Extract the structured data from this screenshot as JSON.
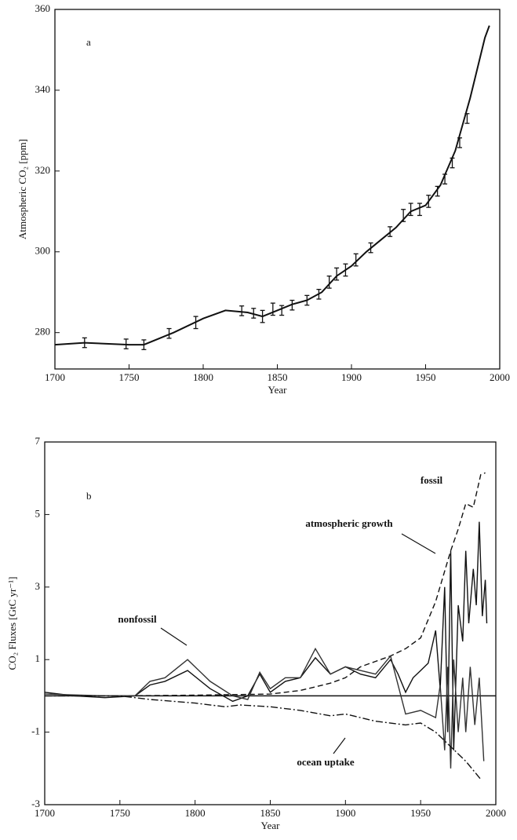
{
  "chart_data": [
    {
      "type": "line",
      "annotation": "a",
      "xlabel": "Year",
      "ylabel": "Atmospheric CO₂ [ppm]",
      "xlim": [
        1700,
        2000
      ],
      "xticks": [
        1700,
        1750,
        1800,
        1850,
        1900,
        1950,
        2000
      ],
      "ylim": [
        271,
        360
      ],
      "yticks": [
        280,
        300,
        320,
        340,
        360
      ],
      "series": [
        {
          "color": "#111111",
          "dash": "solid",
          "width": 2,
          "x": [
            1700,
            1720,
            1750,
            1760,
            1780,
            1800,
            1815,
            1830,
            1840,
            1850,
            1860,
            1870,
            1880,
            1890,
            1900,
            1910,
            1920,
            1930,
            1940,
            1950,
            1960,
            1970,
            1980,
            1990,
            1993
          ],
          "values": [
            277,
            277.5,
            277,
            277,
            280,
            283.5,
            285.5,
            285,
            284,
            285.5,
            287,
            288,
            290,
            294,
            296.5,
            300,
            303,
            306,
            310,
            311.5,
            316.5,
            325,
            338,
            353,
            356
          ]
        },
        {
          "color": "#111111",
          "style": "errorbar",
          "x": [
            1720,
            1748,
            1760,
            1777,
            1795,
            1826,
            1834,
            1840,
            1847,
            1853,
            1860,
            1870,
            1878,
            1885,
            1890,
            1896,
            1903,
            1913,
            1926,
            1935,
            1940,
            1946,
            1952,
            1958,
            1963,
            1968,
            1973,
            1978
          ],
          "values": [
            277.5,
            277.2,
            277,
            279.8,
            282.5,
            285.4,
            284.8,
            284,
            285.8,
            285.5,
            286.8,
            288,
            289.5,
            292.5,
            294.5,
            295.5,
            298,
            301,
            305,
            309,
            310.5,
            310.5,
            312.5,
            315,
            318,
            322,
            327,
            333
          ],
          "errors": [
            1.2,
            1.2,
            1.2,
            1.2,
            1.5,
            1.2,
            1.2,
            1.5,
            1.5,
            1.2,
            1.2,
            1.2,
            1.2,
            1.5,
            1.5,
            1.5,
            1.5,
            1.2,
            1.2,
            1.5,
            1.5,
            1.5,
            1.5,
            1.2,
            1.2,
            1.2,
            1.2,
            1.2
          ]
        }
      ]
    },
    {
      "type": "line",
      "annotation": "b",
      "xlabel": "Year",
      "ylabel": "CO₂ Fluxes [GtC yr⁻¹]",
      "xlim": [
        1700,
        2000
      ],
      "xticks": [
        1700,
        1750,
        1800,
        1850,
        1900,
        1950,
        2000
      ],
      "ylim": [
        -3,
        7
      ],
      "yticks": [
        -3,
        -1,
        1,
        3,
        5,
        7
      ],
      "series": [
        {
          "name": "fossil",
          "color": "#111111",
          "dash": "dashed",
          "x": [
            1750,
            1800,
            1850,
            1860,
            1870,
            1880,
            1890,
            1900,
            1910,
            1920,
            1930,
            1940,
            1950,
            1960,
            1970,
            1975,
            1980,
            1985,
            1990,
            1993
          ],
          "values": [
            0,
            0.02,
            0.05,
            0.1,
            0.15,
            0.25,
            0.35,
            0.5,
            0.8,
            0.95,
            1.1,
            1.3,
            1.6,
            2.6,
            4.0,
            4.6,
            5.3,
            5.2,
            6.1,
            6.15
          ]
        },
        {
          "name": "atmospheric growth",
          "color": "#111111",
          "dash": "solid",
          "x": [
            1700,
            1720,
            1740,
            1760,
            1770,
            1780,
            1795,
            1810,
            1825,
            1835,
            1843,
            1850,
            1860,
            1870,
            1880,
            1890,
            1900,
            1910,
            1920,
            1930,
            1935,
            1940,
            1945,
            1950,
            1955,
            1960,
            1963,
            1966,
            1968,
            1970,
            1972,
            1975,
            1978,
            1980,
            1982,
            1985,
            1987,
            1989,
            1991,
            1993,
            1994
          ],
          "values": [
            0.1,
            0,
            -0.05,
            0,
            0.3,
            0.4,
            0.7,
            0.2,
            -0.15,
            0,
            0.6,
            0.1,
            0.4,
            0.5,
            1.05,
            0.6,
            0.8,
            0.6,
            0.5,
            1.0,
            0.6,
            0.1,
            0.5,
            0.7,
            0.9,
            1.8,
            0.2,
            3.0,
            -1.0,
            4.0,
            -1.5,
            2.5,
            1.5,
            4.0,
            2.0,
            3.5,
            2.5,
            4.8,
            2.2,
            3.2,
            2.0
          ]
        },
        {
          "name": "nonfossil",
          "color": "#333333",
          "dash": "solid",
          "x": [
            1700,
            1740,
            1760,
            1770,
            1780,
            1795,
            1810,
            1825,
            1835,
            1843,
            1850,
            1860,
            1870,
            1880,
            1890,
            1900,
            1910,
            1920,
            1930,
            1940,
            1950,
            1960,
            1963,
            1966,
            1968,
            1970,
            1972,
            1975,
            1978,
            1980,
            1983,
            1986,
            1989,
            1992
          ],
          "values": [
            0.05,
            0,
            0,
            0.4,
            0.5,
            1.0,
            0.4,
            0,
            -0.1,
            0.65,
            0.2,
            0.5,
            0.5,
            1.3,
            0.6,
            0.8,
            0.7,
            0.6,
            1.1,
            -0.5,
            -0.4,
            -0.6,
            0.3,
            -1.5,
            0.8,
            -2.0,
            1.0,
            -1.0,
            0.5,
            -1.0,
            0.8,
            -0.8,
            0.5,
            -1.8
          ]
        },
        {
          "name": "ocean uptake",
          "color": "#111111",
          "dash": "dashdot",
          "x": [
            1700,
            1750,
            1770,
            1800,
            1820,
            1830,
            1850,
            1870,
            1890,
            1900,
            1920,
            1940,
            1950,
            1960,
            1970,
            1980,
            1990
          ],
          "values": [
            0,
            0,
            -0.1,
            -0.2,
            -0.3,
            -0.25,
            -0.3,
            -0.4,
            -0.55,
            -0.5,
            -0.7,
            -0.8,
            -0.75,
            -1.0,
            -1.4,
            -1.8,
            -2.3
          ]
        }
      ]
    }
  ]
}
